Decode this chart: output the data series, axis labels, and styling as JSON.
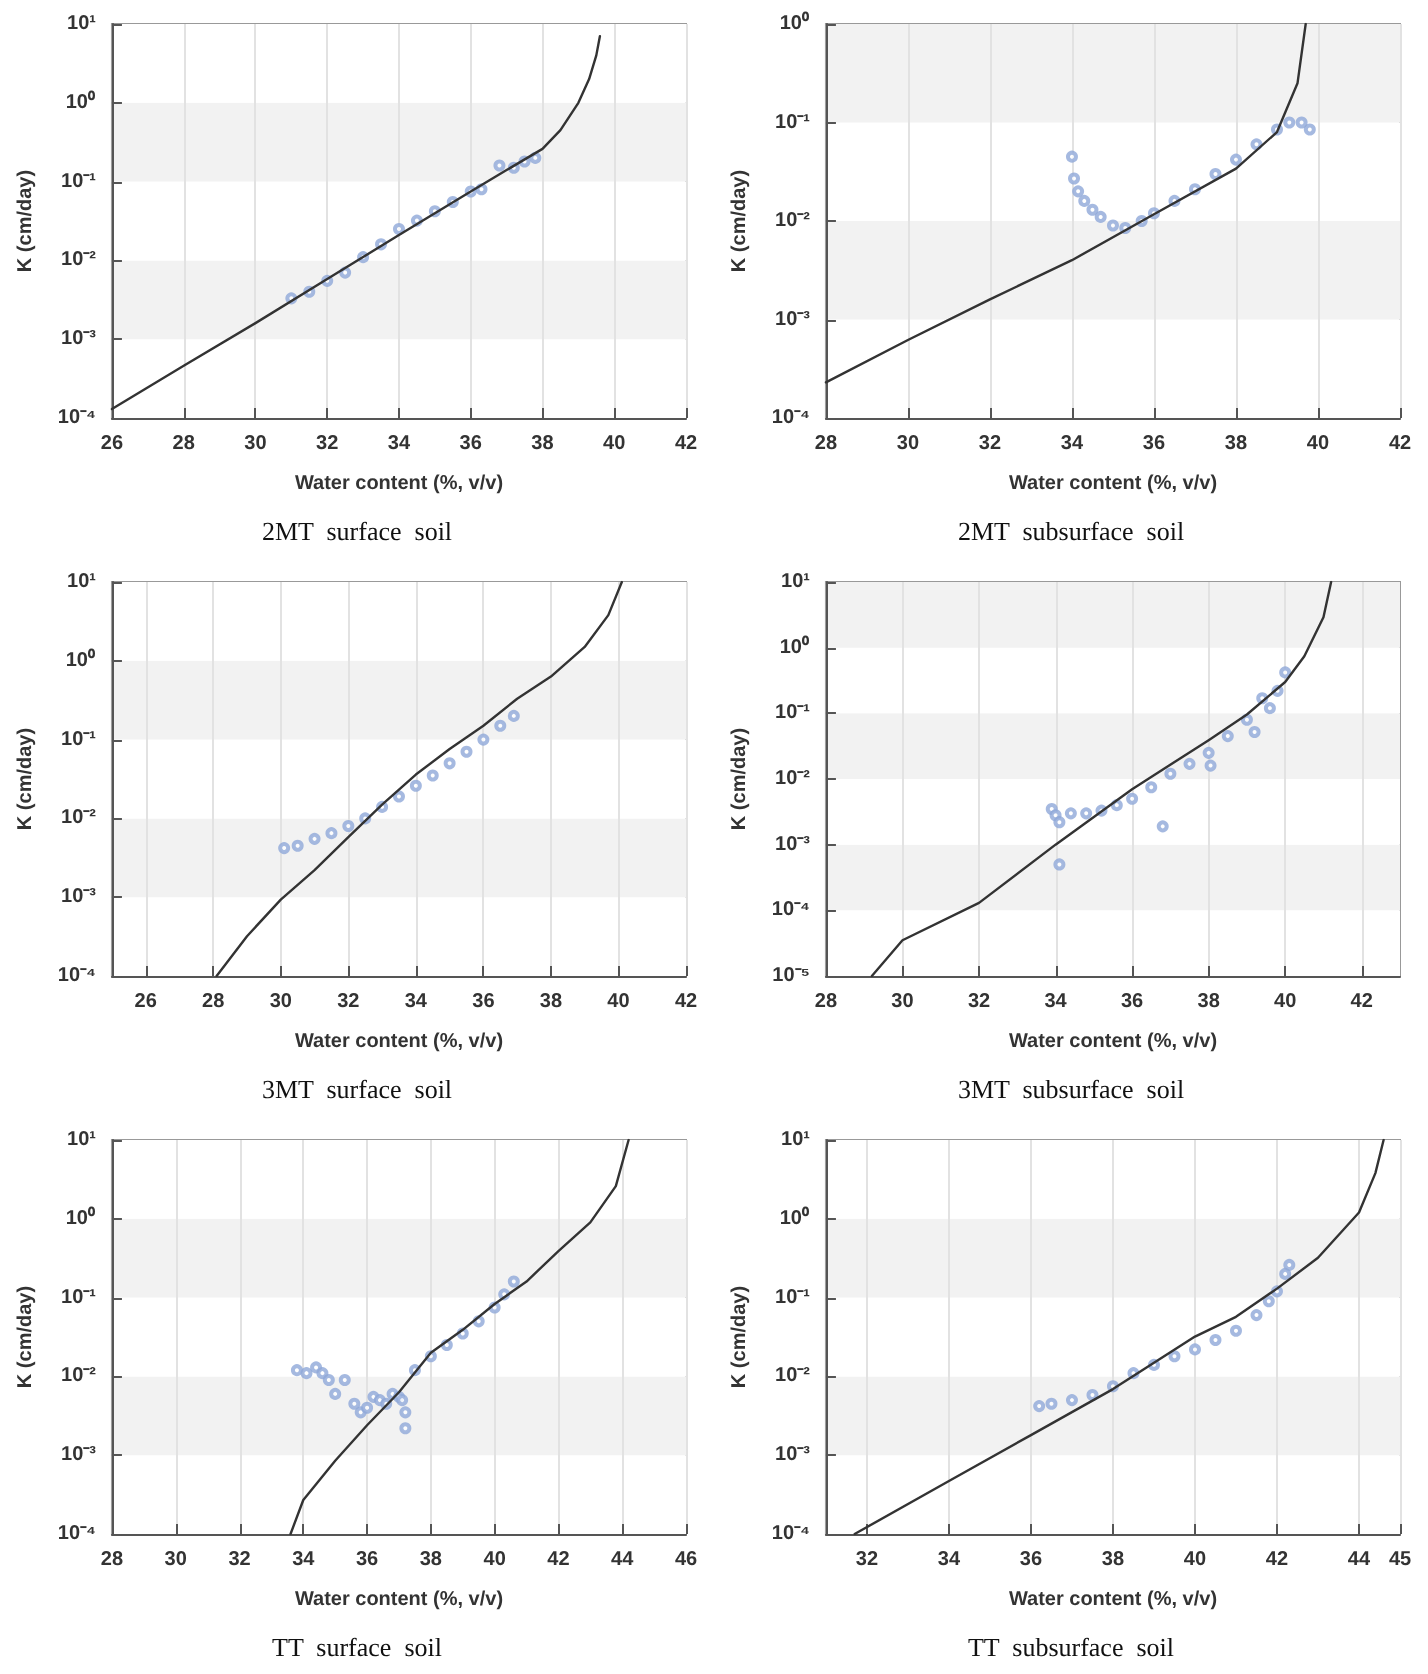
{
  "chart_data": [
    {
      "type": "line",
      "title": "2MT  surface  soil",
      "xlabel": "Water content (%, v/v)",
      "ylabel": "K (cm/day)",
      "log": "y",
      "grid": true,
      "xlim": [
        26,
        42
      ],
      "xticks": [
        26,
        28,
        30,
        32,
        34,
        36,
        38,
        40,
        42
      ],
      "ylim": [
        0.0001,
        10
      ],
      "yticks": [
        {
          "value": 0.0001,
          "label": "10⁻⁴"
        },
        {
          "value": 0.001,
          "label": "10⁻³"
        },
        {
          "value": 0.01,
          "label": "10⁻²"
        },
        {
          "value": 0.1,
          "label": "10⁻¹"
        },
        {
          "value": 1,
          "label": "10⁰"
        },
        {
          "value": 10,
          "label": "10¹"
        }
      ],
      "series": [
        {
          "type": "line",
          "color": "#333333",
          "marker": "none",
          "line_style": "solid",
          "x": [
            26,
            28,
            30,
            32,
            34,
            36,
            37,
            38,
            38.5,
            39,
            39.3,
            39.5,
            39.6
          ],
          "values": [
            0.00013,
            0.00046,
            0.0016,
            0.0058,
            0.021,
            0.075,
            0.14,
            0.26,
            0.45,
            1.0,
            2,
            4,
            7
          ]
        },
        {
          "type": "scatter",
          "color": "#8fa8d8",
          "marker": "circle",
          "x": [
            31,
            31.5,
            32,
            32.5,
            33,
            33.5,
            34,
            34.5,
            35,
            35.5,
            36,
            36.3,
            36.8,
            37.2,
            37.5,
            37.8
          ],
          "values": [
            0.0033,
            0.004,
            0.0055,
            0.007,
            0.011,
            0.016,
            0.025,
            0.032,
            0.042,
            0.055,
            0.075,
            0.08,
            0.16,
            0.15,
            0.18,
            0.2
          ]
        }
      ]
    },
    {
      "type": "line",
      "title": "2MT  subsurface  soil",
      "xlabel": "Water content (%, v/v)",
      "ylabel": "K (cm/day)",
      "log": "y",
      "grid": true,
      "xlim": [
        28,
        42
      ],
      "xticks": [
        28,
        30,
        32,
        34,
        36,
        38,
        40,
        42
      ],
      "ylim": [
        0.0001,
        1
      ],
      "yticks": [
        {
          "value": 0.0001,
          "label": "10⁻⁴"
        },
        {
          "value": 0.001,
          "label": "10⁻³"
        },
        {
          "value": 0.01,
          "label": "10⁻²"
        },
        {
          "value": 0.1,
          "label": "10⁻¹"
        },
        {
          "value": 1,
          "label": "10⁰"
        }
      ],
      "series": [
        {
          "type": "line",
          "color": "#333333",
          "marker": "none",
          "line_style": "solid",
          "x": [
            28,
            30,
            32,
            34,
            36,
            38,
            39,
            39.5,
            39.7
          ],
          "values": [
            0.00023,
            0.00062,
            0.0016,
            0.004,
            0.0117,
            0.034,
            0.08,
            0.25,
            1
          ]
        },
        {
          "type": "scatter",
          "color": "#8fa8d8",
          "marker": "circle",
          "x": [
            34,
            34.05,
            34.15,
            34.3,
            34.5,
            34.7,
            35,
            35.3,
            35.7,
            36,
            36.5,
            37,
            37.5,
            38,
            38.5,
            39,
            39.3,
            39.6,
            39.8
          ],
          "values": [
            0.045,
            0.027,
            0.02,
            0.016,
            0.013,
            0.011,
            0.009,
            0.0085,
            0.01,
            0.012,
            0.016,
            0.021,
            0.03,
            0.042,
            0.06,
            0.085,
            0.1,
            0.1,
            0.085
          ]
        }
      ]
    },
    {
      "type": "line",
      "title": "3MT  surface  soil",
      "xlabel": "Water content (%, v/v)",
      "ylabel": "K (cm/day)",
      "log": "y",
      "grid": true,
      "xlim": [
        25,
        42
      ],
      "xticks": [
        26,
        28,
        30,
        32,
        34,
        36,
        38,
        40,
        42
      ],
      "ylim": [
        0.0001,
        10
      ],
      "yticks": [
        {
          "value": 0.0001,
          "label": "10⁻⁴"
        },
        {
          "value": 0.001,
          "label": "10⁻³"
        },
        {
          "value": 0.01,
          "label": "10⁻²"
        },
        {
          "value": 0.1,
          "label": "10⁻¹"
        },
        {
          "value": 1,
          "label": "10⁰"
        },
        {
          "value": 10,
          "label": "10¹"
        }
      ],
      "series": [
        {
          "type": "line",
          "color": "#333333",
          "marker": "none",
          "line_style": "solid",
          "x": [
            28.1,
            29,
            30,
            31,
            32,
            33,
            34,
            35,
            36,
            37,
            38,
            39,
            39.7,
            40.1
          ],
          "values": [
            0.0001,
            0.00032,
            0.00093,
            0.0022,
            0.0058,
            0.015,
            0.036,
            0.076,
            0.15,
            0.33,
            0.63,
            1.5,
            3.8,
            10
          ]
        },
        {
          "type": "scatter",
          "color": "#8fa8d8",
          "marker": "circle",
          "x": [
            30.1,
            30.5,
            31,
            31.5,
            32,
            32.5,
            33,
            33.5,
            34,
            34.5,
            35,
            35.5,
            36,
            36.5,
            36.9
          ],
          "values": [
            0.0042,
            0.0045,
            0.0055,
            0.0065,
            0.008,
            0.01,
            0.014,
            0.019,
            0.026,
            0.035,
            0.05,
            0.07,
            0.1,
            0.15,
            0.2
          ]
        }
      ]
    },
    {
      "type": "line",
      "title": "3MT  subsurface  soil",
      "xlabel": "Water content (%, v/v)",
      "ylabel": "K (cm/day)",
      "log": "y",
      "grid": true,
      "xlim": [
        28,
        43
      ],
      "xticks": [
        28,
        30,
        32,
        34,
        36,
        38,
        40,
        42
      ],
      "ylim": [
        1e-05,
        10
      ],
      "yticks": [
        {
          "value": 1e-05,
          "label": "10⁻⁵"
        },
        {
          "value": 0.0001,
          "label": "10⁻⁴"
        },
        {
          "value": 0.001,
          "label": "10⁻³"
        },
        {
          "value": 0.01,
          "label": "10⁻²"
        },
        {
          "value": 0.1,
          "label": "10⁻¹"
        },
        {
          "value": 1,
          "label": "10⁰"
        },
        {
          "value": 10,
          "label": "10¹"
        }
      ],
      "series": [
        {
          "type": "line",
          "color": "#333333",
          "marker": "none",
          "line_style": "solid",
          "x": [
            29.2,
            30,
            32,
            34,
            36,
            38,
            39,
            40,
            40.5,
            41,
            41.2
          ],
          "values": [
            1e-05,
            3.5e-05,
            0.00013,
            0.001,
            0.007,
            0.039,
            0.096,
            0.3,
            0.74,
            2.9,
            10
          ]
        },
        {
          "type": "scatter",
          "color": "#8fa8d8",
          "marker": "circle",
          "x": [
            33.9,
            34,
            34.1,
            34.1,
            34.4,
            34.8,
            35.2,
            35.6,
            36,
            36.5,
            36.8,
            37,
            37.5,
            38,
            38.05,
            38.5,
            39,
            39.2,
            39.4,
            39.6,
            39.8,
            40
          ],
          "values": [
            0.0035,
            0.0028,
            0.0022,
            0.0005,
            0.003,
            0.003,
            0.0033,
            0.004,
            0.005,
            0.0075,
            0.0019,
            0.012,
            0.017,
            0.025,
            0.016,
            0.045,
            0.08,
            0.052,
            0.17,
            0.12,
            0.22,
            0.42
          ]
        }
      ]
    },
    {
      "type": "line",
      "title": "TT  surface  soil",
      "xlabel": "Water content (%, v/v)",
      "ylabel": "K (cm/day)",
      "log": "y",
      "grid": true,
      "xlim": [
        28,
        46
      ],
      "xticks": [
        28,
        30,
        32,
        34,
        36,
        38,
        40,
        42,
        44,
        46
      ],
      "ylim": [
        0.0001,
        10
      ],
      "yticks": [
        {
          "value": 0.0001,
          "label": "10⁻⁴"
        },
        {
          "value": 0.001,
          "label": "10⁻³"
        },
        {
          "value": 0.01,
          "label": "10⁻²"
        },
        {
          "value": 0.1,
          "label": "10⁻¹"
        },
        {
          "value": 1,
          "label": "10⁰"
        },
        {
          "value": 10,
          "label": "10¹"
        }
      ],
      "series": [
        {
          "type": "line",
          "color": "#333333",
          "marker": "none",
          "line_style": "solid",
          "x": [
            33.6,
            34,
            35,
            36,
            37,
            38,
            39,
            40,
            41,
            42,
            43,
            43.8,
            44.2
          ],
          "values": [
            0.0001,
            0.00027,
            0.00085,
            0.0024,
            0.0063,
            0.02,
            0.039,
            0.083,
            0.16,
            0.39,
            0.9,
            2.6,
            10
          ]
        },
        {
          "type": "scatter",
          "color": "#8fa8d8",
          "marker": "circle",
          "x": [
            33.8,
            34.1,
            34.4,
            34.6,
            34.8,
            35,
            35.3,
            35.6,
            35.8,
            36,
            36.2,
            36.4,
            36.6,
            36.8,
            37,
            37.1,
            37.2,
            37.2,
            37.5,
            38,
            38.5,
            39,
            39.5,
            40,
            40.3,
            40.6
          ],
          "values": [
            0.012,
            0.011,
            0.013,
            0.011,
            0.009,
            0.006,
            0.009,
            0.0045,
            0.0035,
            0.004,
            0.0055,
            0.005,
            0.0045,
            0.006,
            0.0055,
            0.005,
            0.0035,
            0.0022,
            0.012,
            0.018,
            0.025,
            0.035,
            0.05,
            0.075,
            0.11,
            0.16
          ]
        }
      ]
    },
    {
      "type": "line",
      "title": "TT  subsurface  soil",
      "xlabel": "Water content (%, v/v)",
      "ylabel": "K (cm/day)",
      "log": "y",
      "grid": true,
      "xlim": [
        31,
        45
      ],
      "xticks": [
        32,
        34,
        36,
        38,
        40,
        42,
        44,
        45
      ],
      "ylim": [
        0.0001,
        10
      ],
      "yticks": [
        {
          "value": 0.0001,
          "label": "10⁻⁴"
        },
        {
          "value": 0.001,
          "label": "10⁻³"
        },
        {
          "value": 0.01,
          "label": "10⁻²"
        },
        {
          "value": 0.1,
          "label": "10⁻¹"
        },
        {
          "value": 1,
          "label": "10⁰"
        },
        {
          "value": 10,
          "label": "10¹"
        }
      ],
      "series": [
        {
          "type": "line",
          "color": "#333333",
          "marker": "none",
          "line_style": "solid",
          "x": [
            31.7,
            34,
            36,
            38,
            40,
            41,
            42,
            43,
            44,
            44.4,
            44.6
          ],
          "values": [
            0.0001,
            0.00047,
            0.0018,
            0.0069,
            0.032,
            0.057,
            0.13,
            0.32,
            1.2,
            3.8,
            10
          ]
        },
        {
          "type": "scatter",
          "color": "#8fa8d8",
          "marker": "circle",
          "x": [
            36.2,
            36.5,
            37,
            37.5,
            38,
            38.5,
            39,
            39.5,
            40,
            40.5,
            41,
            41.5,
            41.8,
            42,
            42.2,
            42.3
          ],
          "values": [
            0.0042,
            0.0045,
            0.005,
            0.0058,
            0.0075,
            0.011,
            0.014,
            0.018,
            0.022,
            0.029,
            0.038,
            0.06,
            0.09,
            0.12,
            0.2,
            0.26
          ]
        }
      ]
    }
  ]
}
